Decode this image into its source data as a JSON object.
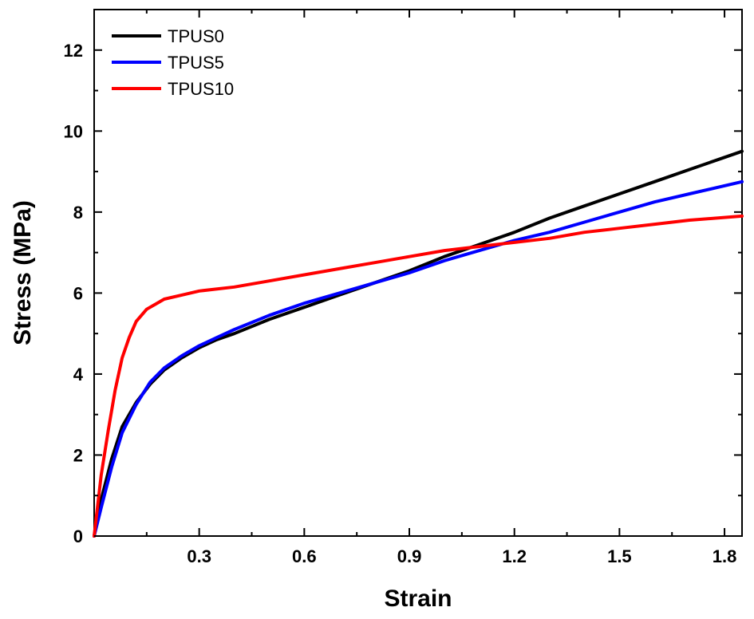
{
  "chart_data": {
    "type": "line",
    "title": "",
    "xlabel": "Strain",
    "ylabel": "Stress (MPa)",
    "xlim": [
      0,
      1.85
    ],
    "ylim": [
      0,
      13
    ],
    "xticks": [
      0.3,
      0.6,
      0.9,
      1.2,
      1.5,
      1.8
    ],
    "xtick_labels": [
      "0.3",
      "0.6",
      "0.9",
      "1.2",
      "1.5",
      "1.8"
    ],
    "yticks": [
      0,
      2,
      4,
      6,
      8,
      10,
      12
    ],
    "ytick_labels": [
      "0",
      "2",
      "4",
      "6",
      "8",
      "10",
      "12"
    ],
    "legend_position": "top-left",
    "grid": false,
    "series": [
      {
        "name": "TPUS0",
        "color": "#000000",
        "x": [
          0,
          0.02,
          0.05,
          0.08,
          0.12,
          0.16,
          0.2,
          0.25,
          0.3,
          0.35,
          0.4,
          0.5,
          0.6,
          0.7,
          0.8,
          0.9,
          1.0,
          1.1,
          1.2,
          1.3,
          1.4,
          1.5,
          1.6,
          1.7,
          1.85
        ],
        "y": [
          0,
          0.9,
          1.9,
          2.7,
          3.3,
          3.75,
          4.1,
          4.4,
          4.65,
          4.85,
          5.0,
          5.35,
          5.65,
          5.95,
          6.25,
          6.55,
          6.9,
          7.2,
          7.5,
          7.85,
          8.15,
          8.45,
          8.75,
          9.05,
          9.5
        ]
      },
      {
        "name": "TPUS5",
        "color": "#0000ff",
        "x": [
          0,
          0.02,
          0.05,
          0.08,
          0.12,
          0.16,
          0.2,
          0.25,
          0.3,
          0.35,
          0.4,
          0.5,
          0.6,
          0.7,
          0.8,
          0.9,
          1.0,
          1.1,
          1.2,
          1.3,
          1.4,
          1.5,
          1.6,
          1.7,
          1.85
        ],
        "y": [
          0,
          0.7,
          1.7,
          2.55,
          3.25,
          3.8,
          4.15,
          4.45,
          4.7,
          4.9,
          5.1,
          5.45,
          5.75,
          6.0,
          6.25,
          6.5,
          6.8,
          7.05,
          7.3,
          7.5,
          7.75,
          8.0,
          8.25,
          8.45,
          8.75
        ]
      },
      {
        "name": "TPUS10",
        "color": "#ff0000",
        "x": [
          0,
          0.02,
          0.04,
          0.06,
          0.08,
          0.1,
          0.12,
          0.15,
          0.18,
          0.2,
          0.25,
          0.3,
          0.4,
          0.5,
          0.6,
          0.7,
          0.8,
          0.9,
          1.0,
          1.1,
          1.2,
          1.3,
          1.4,
          1.5,
          1.6,
          1.7,
          1.85
        ],
        "y": [
          0,
          1.5,
          2.6,
          3.6,
          4.4,
          4.9,
          5.3,
          5.6,
          5.75,
          5.85,
          5.95,
          6.05,
          6.15,
          6.3,
          6.45,
          6.6,
          6.75,
          6.9,
          7.05,
          7.15,
          7.25,
          7.35,
          7.5,
          7.6,
          7.7,
          7.8,
          7.9
        ]
      }
    ]
  }
}
